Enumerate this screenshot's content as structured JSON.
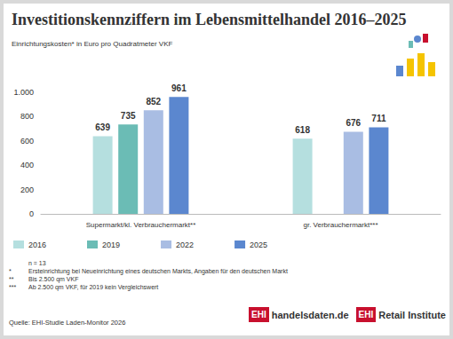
{
  "chart_data": {
    "type": "bar",
    "title": "Investitionskennziffern im Lebensmittelhandel 2016–2025",
    "subtitle": "Einrichtungskosten* in Euro pro Quadratmeter VKF",
    "categories": [
      "Supermarkt/kl. Verbrauchermarkt**",
      "gr. Verbrauchermarkt***"
    ],
    "series": [
      {
        "name": "2016",
        "color": "#b5dfdf",
        "values": [
          639,
          618
        ]
      },
      {
        "name": "2019",
        "color": "#6bbcb5",
        "values": [
          735,
          null
        ]
      },
      {
        "name": "2022",
        "color": "#a9bde3",
        "values": [
          852,
          676
        ]
      },
      {
        "name": "2025",
        "color": "#5b87cf",
        "values": [
          961,
          711
        ]
      }
    ],
    "ylim": [
      0,
      1000
    ],
    "yticks": [
      0,
      200,
      400,
      600,
      800,
      {
        "value": 1000,
        "label": "1.000"
      }
    ],
    "grid": false,
    "data_labels": true,
    "legend": "bottom-left",
    "notes": [
      {
        "mark": "",
        "text": "n = 13"
      },
      {
        "mark": "*",
        "text": "Ersteinrichtung bei Neueinrichtung eines deutschen Markts, Angaben für den deutschen Markt"
      },
      {
        "mark": "**",
        "text": "Bis 2.500 qm VKF"
      },
      {
        "mark": "***",
        "text": "Ab 2.500 qm VKF, für 2019 kein Vergleichswert"
      }
    ],
    "source": "Quelle: EHI-Studie Laden-Monitor 2026",
    "logos": [
      {
        "mark": "EHI",
        "text": "handelsdaten.de"
      },
      {
        "mark": "EHI",
        "text": "Retail Institute"
      }
    ]
  }
}
